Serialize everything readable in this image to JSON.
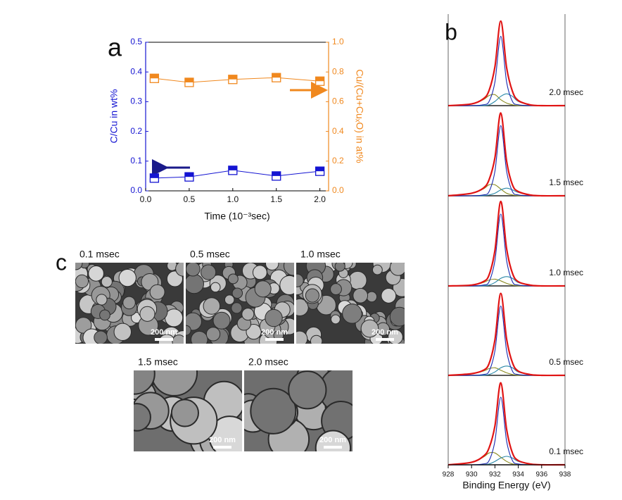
{
  "chart_data": [
    {
      "type": "line",
      "panel_label": "a",
      "xlabel": "Time (10⁻³sec)",
      "ylabel": "C/Cu  in wt%",
      "y2label": "Cu/(Cu+CuₓO) in at%",
      "x": [
        0.1,
        0.5,
        1.0,
        1.5,
        2.0
      ],
      "xlim": [
        0,
        2.1
      ],
      "xticks": [
        {
          "value": 0,
          "label": "0.0"
        },
        0.5,
        {
          "value": 1,
          "label": "1.0"
        },
        1.5,
        {
          "value": 2,
          "label": "2.0"
        }
      ],
      "ylim": [
        0,
        0.5
      ],
      "yticks": [
        {
          "value": 0,
          "label": "0.0"
        },
        0.1,
        0.2,
        0.3,
        0.4,
        0.5
      ],
      "y2lim": [
        0,
        1
      ],
      "y2ticks": [
        {
          "value": 0,
          "label": "0.0"
        },
        0.2,
        0.4,
        0.6,
        0.8,
        {
          "value": 1,
          "label": "1.0"
        }
      ],
      "series": [
        {
          "color": "#1414d2",
          "values": [
            0.043,
            0.047,
            0.069,
            0.05,
            0.066
          ]
        },
        {
          "color": "#f0881e",
          "axis": "y2",
          "values": [
            0.757,
            0.73,
            0.75,
            0.762,
            0.738
          ]
        }
      ]
    },
    {
      "type": "stacked-spectra",
      "panel_label": "b",
      "xlabel": "Binding Energy (eV)",
      "x": [
        928,
        930,
        931,
        931.5,
        932,
        932.5,
        933,
        933.5,
        934,
        935,
        936,
        938
      ],
      "xlim": [
        928,
        938
      ],
      "xticks": [
        928,
        930,
        932,
        934,
        936,
        938
      ],
      "ylim": [
        0,
        1.05
      ],
      "spectra": [
        {
          "label": "2.0 msec",
          "series": [
            {
              "color": "#8a8a20",
              "values": [
                0,
                0.02,
                0.07,
                0.12,
                0.13,
                0.07,
                0.03,
                0.01,
                0,
                0,
                0,
                0
              ]
            },
            {
              "color": "#2a88a8",
              "values": [
                0,
                0,
                0,
                0.01,
                0.05,
                0.11,
                0.14,
                0.11,
                0.05,
                0.01,
                0,
                0
              ]
            },
            {
              "color": "#1a2ab0",
              "values": [
                0,
                0,
                0.01,
                0.05,
                0.28,
                0.82,
                0.28,
                0.05,
                0.01,
                0,
                0,
                0
              ]
            },
            {
              "color": "#e01414",
              "values": [
                0,
                0.02,
                0.08,
                0.18,
                0.46,
                1.0,
                0.45,
                0.17,
                0.06,
                0.01,
                0,
                0
              ]
            }
          ]
        },
        {
          "label": "1.5 msec",
          "series": [
            {
              "color": "#8a8a20",
              "values": [
                0,
                0.03,
                0.08,
                0.13,
                0.13,
                0.08,
                0.03,
                0.01,
                0,
                0,
                0,
                0
              ]
            },
            {
              "color": "#2a88a8",
              "values": [
                0,
                0,
                0,
                0.01,
                0.03,
                0.07,
                0.09,
                0.07,
                0.04,
                0.01,
                0,
                0
              ]
            },
            {
              "color": "#1a2ab0",
              "values": [
                0,
                0,
                0.01,
                0.05,
                0.29,
                0.83,
                0.29,
                0.05,
                0.01,
                0,
                0,
                0
              ]
            },
            {
              "color": "#e01414",
              "values": [
                0,
                0.03,
                0.09,
                0.19,
                0.45,
                0.98,
                0.41,
                0.13,
                0.05,
                0.01,
                0,
                0
              ]
            }
          ]
        },
        {
          "label": "1.0 msec",
          "series": [
            {
              "color": "#8a8a20",
              "values": [
                0,
                0.01,
                0.04,
                0.07,
                0.08,
                0.06,
                0.03,
                0.01,
                0,
                0,
                0,
                0
              ]
            },
            {
              "color": "#2a88a8",
              "values": [
                0,
                0,
                0,
                0.01,
                0.04,
                0.09,
                0.11,
                0.09,
                0.04,
                0.01,
                0,
                0
              ]
            },
            {
              "color": "#1a2ab0",
              "values": [
                0,
                0,
                0.01,
                0.05,
                0.3,
                0.85,
                0.3,
                0.05,
                0.01,
                0,
                0,
                0
              ]
            },
            {
              "color": "#e01414",
              "values": [
                0,
                0.01,
                0.05,
                0.13,
                0.42,
                1.0,
                0.44,
                0.15,
                0.05,
                0.01,
                0,
                0
              ]
            }
          ]
        },
        {
          "label": "0.5 msec",
          "series": [
            {
              "color": "#8a8a20",
              "values": [
                0,
                0.02,
                0.05,
                0.08,
                0.09,
                0.06,
                0.03,
                0.01,
                0,
                0,
                0,
                0
              ]
            },
            {
              "color": "#2a88a8",
              "values": [
                0,
                0,
                0,
                0.01,
                0.04,
                0.09,
                0.11,
                0.09,
                0.04,
                0.01,
                0,
                0
              ]
            },
            {
              "color": "#1a2ab0",
              "values": [
                0,
                0,
                0.01,
                0.05,
                0.29,
                0.82,
                0.29,
                0.05,
                0.01,
                0,
                0,
                0
              ]
            },
            {
              "color": "#e01414",
              "values": [
                0,
                0.02,
                0.06,
                0.14,
                0.42,
                0.97,
                0.43,
                0.15,
                0.05,
                0.01,
                0,
                0
              ]
            }
          ]
        },
        {
          "label": "0.1 msec",
          "series": [
            {
              "color": "#8a8a20",
              "values": [
                0,
                0.03,
                0.09,
                0.14,
                0.14,
                0.09,
                0.04,
                0.01,
                0,
                0,
                0,
                0
              ]
            },
            {
              "color": "#2a88a8",
              "values": [
                0,
                0,
                0,
                0.01,
                0.04,
                0.08,
                0.1,
                0.08,
                0.04,
                0.01,
                0,
                0
              ]
            },
            {
              "color": "#1a2ab0",
              "values": [
                0,
                0,
                0.01,
                0.05,
                0.28,
                0.8,
                0.28,
                0.05,
                0.01,
                0,
                0,
                0
              ]
            },
            {
              "color": "#e01414",
              "values": [
                0,
                0.03,
                0.1,
                0.2,
                0.46,
                0.97,
                0.42,
                0.14,
                0.05,
                0.01,
                0,
                0
              ]
            }
          ]
        }
      ]
    }
  ],
  "figure_c": {
    "panel_label": "c",
    "images": [
      {
        "label": "0.1 msec",
        "scale": "200 nm"
      },
      {
        "label": "0.5 msec",
        "scale": "200 nm"
      },
      {
        "label": "1.0 msec",
        "scale": "200 nm"
      },
      {
        "label": "1.5 msec",
        "scale": "200 nm"
      },
      {
        "label": "2.0 msec",
        "scale": "200 nm"
      }
    ]
  }
}
